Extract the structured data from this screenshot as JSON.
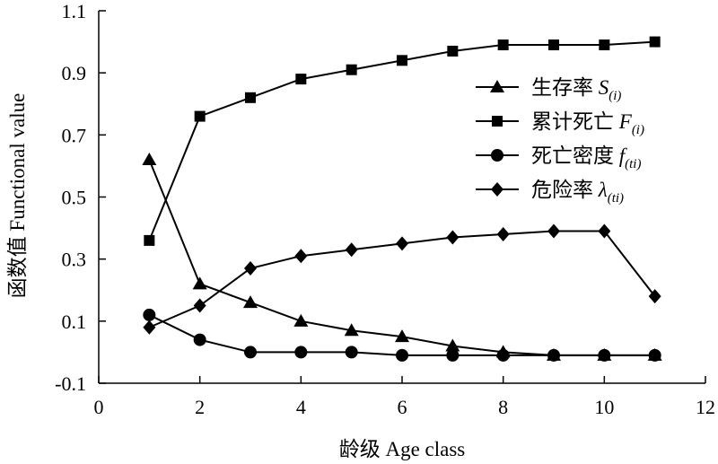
{
  "chart_data": {
    "type": "line",
    "xlabel": "龄级 Age class",
    "ylabel": "函数值 Functional value",
    "xlim": [
      0,
      12
    ],
    "ylim": [
      -0.1,
      1.1
    ],
    "x_ticks": [
      "0",
      "2",
      "4",
      "6",
      "8",
      "10",
      "12"
    ],
    "y_ticks": [
      "-0.1",
      "0.1",
      "0.3",
      "0.5",
      "0.7",
      "0.9",
      "1.1"
    ],
    "grid": false,
    "legend_position": "right",
    "x": [
      1,
      2,
      3,
      4,
      5,
      6,
      7,
      8,
      9,
      10,
      11
    ],
    "series": [
      {
        "name": "生存率 S(i)",
        "label_main": "生存率",
        "label_symbol": "S",
        "label_sub": "(i)",
        "marker": "triangle",
        "values": [
          0.62,
          0.22,
          0.16,
          0.1,
          0.07,
          0.05,
          0.02,
          0.0,
          -0.01,
          -0.01,
          -0.01
        ]
      },
      {
        "name": "累计死亡 F(i)",
        "label_main": "累计死亡",
        "label_symbol": "F",
        "label_sub": "(i)",
        "marker": "square",
        "values": [
          0.36,
          0.76,
          0.82,
          0.88,
          0.91,
          0.94,
          0.97,
          0.99,
          0.99,
          0.99,
          1.0
        ]
      },
      {
        "name": "死亡密度 f(ti)",
        "label_main": "死亡密度",
        "label_symbol": "f",
        "label_sub": "(ti)",
        "marker": "circle",
        "values": [
          0.12,
          0.04,
          0.0,
          0.0,
          0.0,
          -0.01,
          -0.01,
          -0.01,
          -0.01,
          -0.01,
          -0.01
        ]
      },
      {
        "name": "危险率 λ(ti)",
        "label_main": "危险率",
        "label_symbol": "λ",
        "label_sub": "(ti)",
        "marker": "diamond",
        "values": [
          0.08,
          0.15,
          0.27,
          0.31,
          0.33,
          0.35,
          0.37,
          0.38,
          0.39,
          0.39,
          0.18
        ]
      }
    ]
  }
}
